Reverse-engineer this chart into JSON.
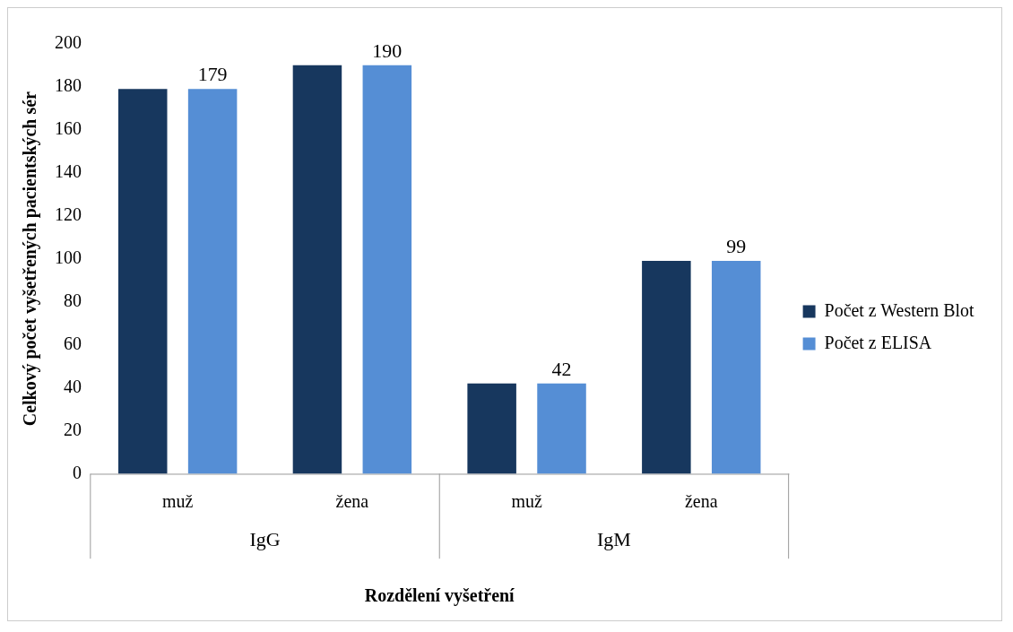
{
  "chart_data": {
    "type": "bar",
    "xlabel": "Rozdělení vyšetření",
    "ylabel": "Celkový počet vyšetřených pacientských sér",
    "categories": [
      "muž",
      "žena",
      "muž",
      "žena"
    ],
    "series": [
      {
        "name": "Počet z Western Blot",
        "color": "#17375e",
        "values": [
          179,
          190,
          42,
          99
        ]
      },
      {
        "name": "Počet z ELISA",
        "color": "#558ed5",
        "values": [
          179,
          190,
          42,
          99
        ],
        "value_labels": [
          "179",
          "190",
          "42",
          "99"
        ]
      }
    ],
    "annotations": [
      "IgG",
      "IgM"
    ],
    "ylim": [
      0,
      200
    ],
    "yticks": [
      0,
      20,
      40,
      60,
      80,
      100,
      120,
      140,
      160,
      180,
      200
    ],
    "grid": false,
    "legend": "right"
  }
}
